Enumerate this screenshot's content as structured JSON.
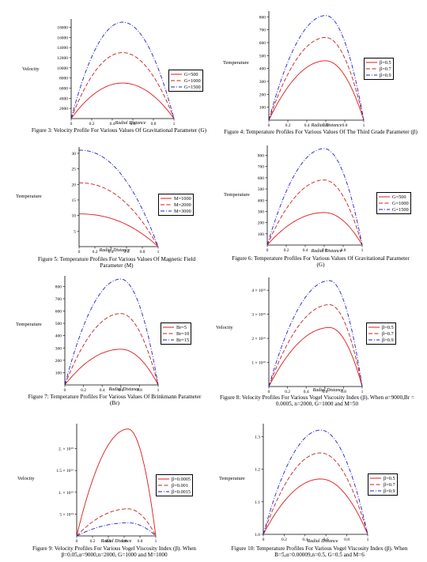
{
  "chart_data": [
    {
      "id": "f3",
      "type": "line",
      "ylabel": "Velocity",
      "xlabel": "Radial Distance",
      "ylim": [
        0,
        19000
      ],
      "yticks": [
        2000,
        4000,
        6000,
        8000,
        10000,
        12000,
        14000,
        16000,
        18000
      ],
      "ytick_labels": [
        "2000",
        "4000",
        "6000",
        "8000",
        "10000",
        "12000",
        "14000",
        "16000",
        "18000"
      ],
      "series": [
        {
          "name": "G=500",
          "peak": 7000,
          "color": "#e01818",
          "dash": "solid"
        },
        {
          "name": "G=1000",
          "peak": 13000,
          "color": "#c02020",
          "dash": "dash"
        },
        {
          "name": "G=1500",
          "peak": 19000,
          "color": "#2020d0",
          "dash": "dashdot"
        }
      ],
      "peak_x": 0.5,
      "caption": "Figure 3: Velocity Profile For Various Values Of Gravitational Parameter (G)"
    },
    {
      "id": "f4",
      "type": "line",
      "ylabel": "Temperature",
      "xlabel": "Radial Distance",
      "ylim": [
        0,
        820
      ],
      "yticks": [
        100,
        200,
        300,
        400,
        500,
        600,
        700,
        800
      ],
      "ytick_labels": [
        "100",
        "200",
        "300",
        "400",
        "500",
        "600",
        "700",
        "800"
      ],
      "series": [
        {
          "name": "β=0.5",
          "peak": 460,
          "color": "#e01818",
          "dash": "solid"
        },
        {
          "name": "β=0.7",
          "peak": 640,
          "color": "#c02020",
          "dash": "dash"
        },
        {
          "name": "β=0.9",
          "peak": 810,
          "color": "#2020d0",
          "dash": "dashdot"
        }
      ],
      "peak_x": 0.6,
      "caption": "Figure 4: Temperature Profiles For Various Values Of The Third Grade Parameter (β)"
    },
    {
      "id": "f5",
      "type": "line",
      "ylabel": "Temperature",
      "xlabel": "Radial Distance",
      "ylim": [
        0,
        31
      ],
      "yticks": [
        5,
        10,
        15,
        20,
        25,
        30
      ],
      "ytick_labels": [
        "5",
        "10",
        "15",
        "20",
        "25",
        "30"
      ],
      "decay": true,
      "series": [
        {
          "name": "M=1000",
          "peak": 10.5,
          "color": "#e01818",
          "dash": "solid"
        },
        {
          "name": "M=2000",
          "peak": 20.5,
          "color": "#c02020",
          "dash": "dash"
        },
        {
          "name": "M=3000",
          "peak": 31,
          "color": "#2020d0",
          "dash": "dashdot"
        }
      ],
      "caption": "Figure 5: Temperature Profiles For Various Values Of Magnetic Field Parameter (M)"
    },
    {
      "id": "f6",
      "type": "line",
      "ylabel": "Temperature",
      "xlabel": "Radial Distance",
      "ylim": [
        0,
        860
      ],
      "yticks": [
        100,
        200,
        300,
        400,
        500,
        600,
        700,
        800
      ],
      "ytick_labels": [
        "100",
        "200",
        "300",
        "400",
        "500",
        "600",
        "700",
        "800"
      ],
      "series": [
        {
          "name": "G=500",
          "peak": 290,
          "color": "#e01818",
          "dash": "solid"
        },
        {
          "name": "G=1000",
          "peak": 580,
          "color": "#c02020",
          "dash": "dash"
        },
        {
          "name": "G=1500",
          "peak": 860,
          "color": "#2020d0",
          "dash": "dashdot"
        }
      ],
      "peak_x": 0.6,
      "caption": "Figure 6: Temperature Profiles For Various Values Of Gravitational Parameter (G)"
    },
    {
      "id": "f7",
      "type": "line",
      "ylabel": "Temperature",
      "xlabel": "Radial Distance",
      "ylim": [
        0,
        860
      ],
      "yticks": [
        100,
        200,
        300,
        400,
        500,
        600,
        700,
        800
      ],
      "ytick_labels": [
        "100",
        "200",
        "300",
        "400",
        "500",
        "600",
        "700",
        "800"
      ],
      "series": [
        {
          "name": "Br=5",
          "peak": 290,
          "color": "#e01818",
          "dash": "solid"
        },
        {
          "name": "Br=10",
          "peak": 580,
          "color": "#c02020",
          "dash": "dash"
        },
        {
          "name": "Br=15",
          "peak": 860,
          "color": "#2020d0",
          "dash": "dashdot"
        }
      ],
      "peak_x": 0.6,
      "caption": "Figure 7: Temperature Profiles For Various Values Of Brinkmann Parameter (Br)"
    },
    {
      "id": "f8",
      "type": "line",
      "ylabel": "Velocity",
      "xlabel": "Radial Distance",
      "ylim": [
        0,
        4.4
      ],
      "yticks": [
        1,
        2,
        3,
        4
      ],
      "ytick_labels": [
        "1 × 10¹⁶",
        "2 × 10¹⁶",
        "3 × 10¹⁶",
        "4 × 10¹⁶"
      ],
      "series": [
        {
          "name": "β=0.5",
          "peak": 2.45,
          "color": "#e01818",
          "dash": "solid"
        },
        {
          "name": "β=0.7",
          "peak": 3.4,
          "color": "#c02020",
          "dash": "dash"
        },
        {
          "name": "β=0.9",
          "peak": 4.4,
          "color": "#2020d0",
          "dash": "dashdot"
        }
      ],
      "peak_x": 0.65,
      "caption": "Figure 8: Velocity Profiles For Various Vogel Viscosity Index (β). When α=9000,Br = 0.0005, n=2000, G=1000 and M=50"
    },
    {
      "id": "f9",
      "type": "line",
      "ylabel": "Velocity",
      "xlabel": "Radial Distance",
      "ylim": [
        0,
        2.5
      ],
      "yticks": [
        0.5,
        1,
        1.5,
        2
      ],
      "ytick_labels": [
        "5 × 10¹⁴",
        "1. × 10¹⁵",
        "1.5 × 10¹⁵",
        "2. × 10¹⁵"
      ],
      "series": [
        {
          "name": "β=0.0005",
          "peak": 2.45,
          "color": "#e01818",
          "dash": "solid"
        },
        {
          "name": "β=0.001",
          "peak": 0.62,
          "color": "#c02020",
          "dash": "dash"
        },
        {
          "name": "β=0.0015",
          "peak": 0.3,
          "color": "#2020d0",
          "dash": "dashdot"
        }
      ],
      "peak_x": 0.65,
      "caption": "Figure 9: Velocity Profiles For Various Vogel Viscosity Index (β). When β=0.05,α=9000,n=2000, G=1000 and M=1000"
    },
    {
      "id": "f10",
      "type": "line",
      "ylabel": "Temperature",
      "xlabel": "Radial Distance",
      "ylim": [
        1.0,
        1.33
      ],
      "yticks": [
        1.0,
        1.1,
        1.2,
        1.3
      ],
      "ytick_labels": [
        "1.0",
        "1.1",
        "1.2",
        "1.3"
      ],
      "series": [
        {
          "name": "β=0.5",
          "peak": 1.17,
          "color": "#e01818",
          "dash": "solid"
        },
        {
          "name": "β=0.7",
          "peak": 1.25,
          "color": "#c02020",
          "dash": "dash"
        },
        {
          "name": "β=0.9",
          "peak": 1.32,
          "color": "#2020d0",
          "dash": "dashdot"
        }
      ],
      "peak_x": 0.55,
      "caption": "Figure 10: Temperature Profiles For Various Vogel Viscosity Index (β). When B=5,α=0.00009,n=0.5, G=0.5 and M=6"
    }
  ],
  "xticks": [
    0,
    0.2,
    0.4,
    0.6,
    0.8,
    1
  ],
  "xtick_labels": [
    "0",
    "0.2",
    "0.4",
    "0.6",
    "0.8",
    "1"
  ]
}
